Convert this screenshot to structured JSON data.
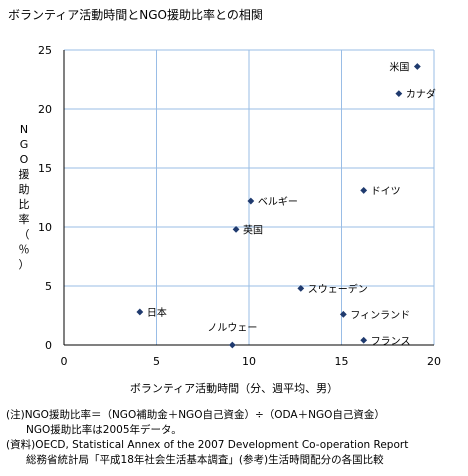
{
  "title": "ボランティア活動時間とNGO援助比率との相関",
  "chart_data": {
    "type": "scatter",
    "title": "ボランティア活動時間とNGO援助比率との相関",
    "xlabel": "ボランティア活動時間（分、週平均、男）",
    "ylabel": "NGO援助比率（％）",
    "xlim": [
      0,
      20
    ],
    "ylim": [
      0,
      25
    ],
    "xticks": [
      0,
      5,
      10,
      15,
      20
    ],
    "yticks": [
      0,
      5,
      10,
      15,
      20,
      25
    ],
    "grid": true,
    "marker_color": "#1f3a6e",
    "grid_color": "#99bde6",
    "points": [
      {
        "label": "米国",
        "x": 19.1,
        "y": 23.6
      },
      {
        "label": "カナダ",
        "x": 18.1,
        "y": 21.3
      },
      {
        "label": "ドイツ",
        "x": 16.2,
        "y": 13.1
      },
      {
        "label": "ベルギー",
        "x": 10.1,
        "y": 12.2
      },
      {
        "label": "英国",
        "x": 9.3,
        "y": 9.8
      },
      {
        "label": "スウェーデン",
        "x": 12.8,
        "y": 4.8
      },
      {
        "label": "日本",
        "x": 4.1,
        "y": 2.8
      },
      {
        "label": "フィンランド",
        "x": 15.1,
        "y": 2.6
      },
      {
        "label": "フランス",
        "x": 16.2,
        "y": 0.4
      },
      {
        "label": "ノルウェー",
        "x": 9.1,
        "y": 0.0
      }
    ]
  },
  "notes": {
    "line1": "(注)NGO援助比率＝（NGO補助金＋NGO自己資金）÷（ODA＋NGO自己資金）",
    "line2": "      NGO援助比率は2005年データ。",
    "line3": "(資料)OECD, Statistical Annex of the 2007 Development Co-operation Report",
    "line4": "      総務省統計局「平成18年社会生活基本調査」(参考)生活時間配分の各国比較"
  }
}
